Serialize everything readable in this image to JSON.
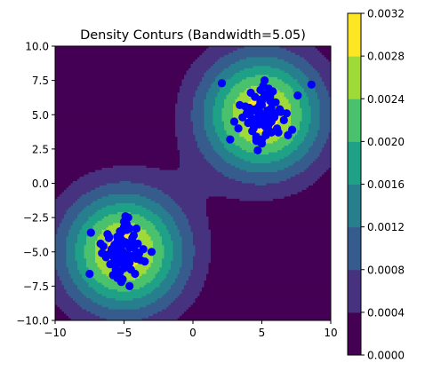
{
  "chart_data": {
    "type": "scatter",
    "title": "Density Conturs (Bandwidth=5.05)",
    "xlim": [
      -10,
      10
    ],
    "ylim": [
      -10,
      10
    ],
    "x_ticks": [
      "−10",
      "−5",
      "0",
      "5",
      "10"
    ],
    "x_tick_values": [
      -10,
      -5,
      0,
      5,
      10
    ],
    "y_ticks": [
      "−10.0",
      "−7.5",
      "−5.0",
      "−2.5",
      "0.0",
      "2.5",
      "5.0",
      "7.5",
      "10.0"
    ],
    "y_tick_values": [
      -10,
      -7.5,
      -5,
      -2.5,
      0,
      2.5,
      5,
      7.5,
      10
    ],
    "grid": false,
    "contour": {
      "type": "filled-contour",
      "levels": [
        0.0,
        0.0004,
        0.0008,
        0.0012,
        0.0016,
        0.002,
        0.0024,
        0.0028,
        0.0032
      ],
      "colors": [
        "#440154",
        "#46327e",
        "#365c8d",
        "#277f8e",
        "#1fa187",
        "#4ac16d",
        "#a0da39",
        "#fde725"
      ],
      "centers": [
        [
          -5,
          -5
        ],
        [
          5,
          5
        ]
      ],
      "colorbar_ticks": [
        "0.0000",
        "0.0004",
        "0.0008",
        "0.0012",
        "0.0016",
        "0.0020",
        "0.0024",
        "0.0028",
        "0.0032"
      ]
    },
    "points": {
      "color": "#0000ff",
      "cluster_a_x": [
        -5.1,
        -4.6,
        -5.4,
        -4.9,
        -5.7,
        -4.2,
        -5.3,
        -4.8,
        -6.0,
        -5.5,
        -4.4,
        -5.0,
        -5.9,
        -4.1,
        -5.2,
        -4.7,
        -6.3,
        -5.6,
        -4.3,
        -5.1,
        -4.9,
        -5.8,
        -4.5,
        -6.1,
        -3.9,
        -5.3,
        -4.8,
        -5.4,
        -4.6,
        -6.5,
        -3.6,
        -5.0,
        -5.7,
        -4.2,
        -5.2,
        -4.9,
        -6.2,
        -4.4,
        -5.5,
        -3.8,
        -5.1,
        -4.7,
        -6.0,
        -5.3,
        -4.3,
        -5.6,
        -4.8,
        -5.0,
        -6.4,
        -4.0,
        -5.4,
        -4.6,
        -5.9,
        -4.9,
        -5.2,
        -4.5,
        -5.8,
        -4.1,
        -5.3,
        -4.8,
        -6.6,
        -3.5,
        -5.0,
        -5.5,
        -4.4,
        -5.1,
        -4.7,
        -6.1,
        -4.2,
        -5.6,
        -3.0,
        -7.4,
        -7.5,
        -5.2,
        -4.9,
        -6.7,
        -4.1,
        -5.3,
        -4.6,
        -5.8
      ],
      "cluster_a_y": [
        -5.0,
        -4.7,
        -5.3,
        -5.6,
        -4.5,
        -5.2,
        -4.2,
        -5.9,
        -5.1,
        -3.9,
        -4.6,
        -6.2,
        -4.8,
        -5.5,
        -3.6,
        -4.4,
        -5.4,
        -6.0,
        -3.8,
        -5.7,
        -4.3,
        -5.0,
        -6.3,
        -4.0,
        -5.1,
        -6.5,
        -3.4,
        -4.9,
        -5.8,
        -4.6,
        -4.8,
        -3.2,
        -5.5,
        -6.6,
        -4.1,
        -5.3,
        -3.7,
        -4.2,
        -6.9,
        -5.6,
        -4.5,
        -5.2,
        -5.9,
        -3.5,
        -4.7,
        -5.0,
        -6.1,
        -2.8,
        -5.2,
        -4.4,
        -6.4,
        -3.3,
        -4.8,
        -5.6,
        -4.9,
        -5.4,
        -6.7,
        -5.0,
        -4.6,
        -3.0,
        -5.1,
        -5.7,
        -6.0,
        -4.3,
        -4.0,
        -7.0,
        -2.5,
        -3.9,
        -4.5,
        -6.3,
        -5.0,
        -3.6,
        -6.6,
        -7.2,
        -2.4,
        -4.4,
        -3.3,
        -5.8,
        -7.5,
        -5.3
      ]
    },
    "points_b": {
      "x": [
        5.0,
        4.6,
        5.4,
        4.8,
        5.7,
        4.2,
        5.2,
        4.9,
        6.0,
        5.5,
        4.4,
        5.1,
        5.8,
        4.1,
        5.3,
        4.7,
        6.3,
        5.6,
        4.3,
        5.0,
        4.8,
        5.9,
        4.5,
        6.1,
        3.9,
        5.2,
        4.6,
        5.4,
        4.9,
        6.6,
        3.6,
        5.0,
        5.7,
        4.2,
        5.3,
        4.8,
        6.2,
        4.4,
        5.5,
        3.8,
        5.1,
        4.7,
        6.0,
        5.3,
        4.3,
        5.6,
        4.9,
        5.0,
        6.4,
        4.0,
        5.4,
        4.6,
        5.9,
        4.8,
        5.2,
        4.5,
        5.8,
        4.1,
        5.3,
        4.9,
        6.8,
        3.4,
        5.0,
        5.5,
        4.4,
        5.1,
        4.7,
        7.2,
        3.0,
        5.6,
        2.1,
        8.6,
        7.6,
        2.7,
        6.9,
        3.3,
        5.2,
        4.6,
        4.9,
        5.7
      ],
      "y": [
        5.0,
        4.7,
        5.3,
        5.6,
        4.5,
        5.2,
        4.2,
        5.9,
        5.1,
        3.9,
        4.6,
        6.2,
        4.8,
        5.5,
        3.6,
        4.4,
        5.4,
        6.0,
        3.8,
        5.7,
        4.3,
        5.0,
        6.3,
        4.0,
        5.1,
        6.5,
        3.4,
        4.9,
        5.8,
        4.6,
        4.8,
        3.2,
        5.5,
        6.6,
        4.1,
        5.3,
        3.7,
        4.2,
        6.9,
        5.6,
        4.5,
        5.2,
        5.9,
        3.5,
        4.7,
        5.0,
        6.1,
        2.9,
        5.2,
        4.4,
        6.4,
        3.3,
        4.8,
        5.6,
        4.9,
        5.4,
        6.7,
        5.0,
        4.6,
        3.0,
        5.1,
        5.7,
        6.0,
        4.3,
        4.0,
        7.1,
        2.4,
        3.9,
        4.5,
        6.3,
        7.3,
        7.2,
        6.4,
        3.2,
        3.5,
        4.0,
        7.5,
        3.1,
        6.8,
        3.7
      ]
    }
  }
}
